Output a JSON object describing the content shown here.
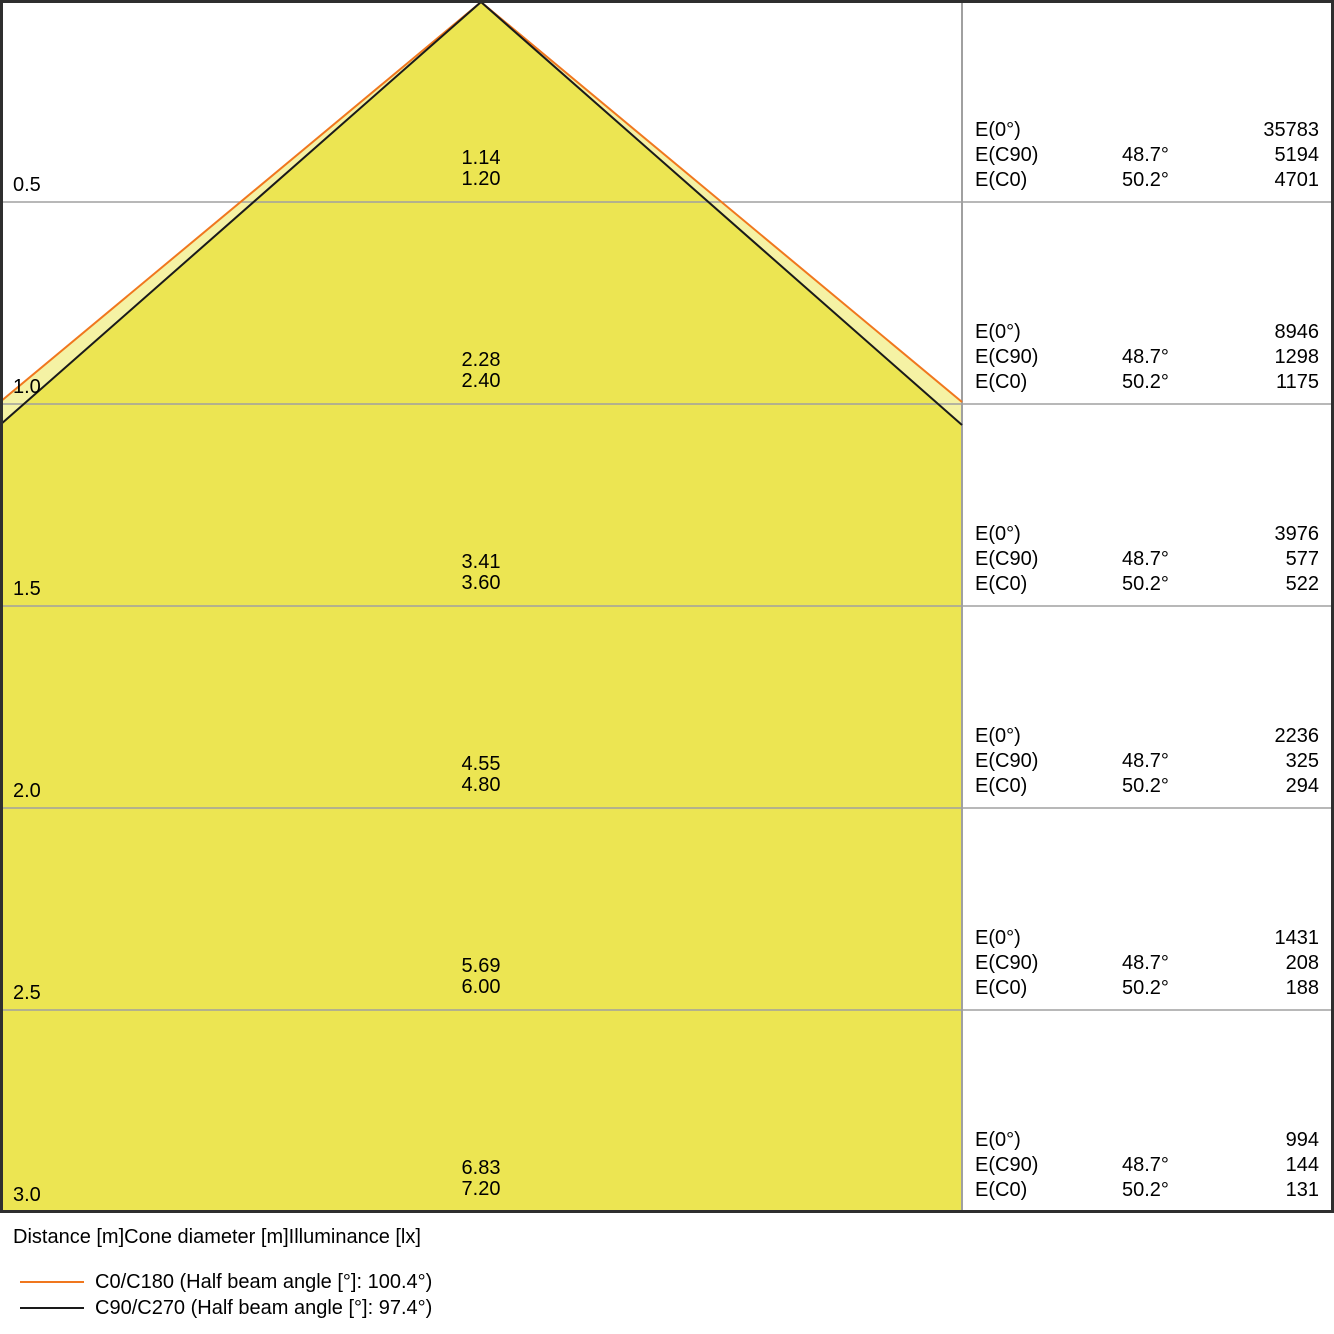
{
  "colors": {
    "cone_fill_main": "#ECE552",
    "cone_fill_light": "#F5F2A4",
    "line_c0_c180": "#F0771E",
    "line_c90_c270": "#1A1A1A",
    "grid_line": "#A0A0A0",
    "border": "#2F2F2F"
  },
  "table_labels": {
    "e0": "E(0°)",
    "ec90": "E(C90)",
    "ec0": "E(C0)"
  },
  "rows": [
    {
      "distance": "0.5",
      "cone_c90": "1.14",
      "cone_c0": "1.20",
      "e0": "35783",
      "ec90_angle": "48.7°",
      "ec90": "5194",
      "ec0_angle": "50.2°",
      "ec0": "4701"
    },
    {
      "distance": "1.0",
      "cone_c90": "2.28",
      "cone_c0": "2.40",
      "e0": "8946",
      "ec90_angle": "48.7°",
      "ec90": "1298",
      "ec0_angle": "50.2°",
      "ec0": "1175"
    },
    {
      "distance": "1.5",
      "cone_c90": "3.41",
      "cone_c0": "3.60",
      "e0": "3976",
      "ec90_angle": "48.7°",
      "ec90": "577",
      "ec0_angle": "50.2°",
      "ec0": "522"
    },
    {
      "distance": "2.0",
      "cone_c90": "4.55",
      "cone_c0": "4.80",
      "e0": "2236",
      "ec90_angle": "48.7°",
      "ec90": "325",
      "ec0_angle": "50.2°",
      "ec0": "294"
    },
    {
      "distance": "2.5",
      "cone_c90": "5.69",
      "cone_c0": "6.00",
      "e0": "1431",
      "ec90_angle": "48.7°",
      "ec90": "208",
      "ec0_angle": "50.2°",
      "ec0": "188"
    },
    {
      "distance": "3.0",
      "cone_c90": "6.83",
      "cone_c0": "7.20",
      "e0": "994",
      "ec90_angle": "48.7°",
      "ec90": "144",
      "ec0_angle": "50.2°",
      "ec0": "131"
    }
  ],
  "legend": {
    "header": "Distance [m]Cone diameter [m]Illuminance [lx]",
    "items": [
      {
        "label": "C0/C180 (Half beam angle [°]: 100.4°)",
        "color": "#F0771E"
      },
      {
        "label": "C90/C270 (Half beam angle [°]: 97.4°)",
        "color": "#1A1A1A"
      }
    ]
  },
  "chart_data": {
    "type": "table",
    "title": "Luminous intensity cone diagram: distance vs cone diameter and illuminance",
    "columns": [
      "Distance [m]",
      "Cone diameter C90/C270 [m]",
      "Cone diameter C0/C180 [m]",
      "E(0°) [lx]",
      "E(C90) half angle [°]",
      "E(C90) [lx]",
      "E(C0) half angle [°]",
      "E(C0) [lx]"
    ],
    "rows": [
      [
        0.5,
        1.14,
        1.2,
        35783,
        48.7,
        5194,
        50.2,
        4701
      ],
      [
        1.0,
        2.28,
        2.4,
        8946,
        48.7,
        1298,
        50.2,
        1175
      ],
      [
        1.5,
        3.41,
        3.6,
        3976,
        48.7,
        577,
        50.2,
        522
      ],
      [
        2.0,
        4.55,
        4.8,
        2236,
        48.7,
        325,
        50.2,
        294
      ],
      [
        2.5,
        5.69,
        6.0,
        1431,
        48.7,
        208,
        50.2,
        188
      ],
      [
        3.0,
        6.83,
        7.2,
        994,
        48.7,
        144,
        50.2,
        131
      ]
    ],
    "series": [
      {
        "name": "C0/C180 (Half beam angle [°]: 100.4°)",
        "half_beam_angle_deg": 100.4,
        "color": "#F0771E"
      },
      {
        "name": "C90/C270 (Half beam angle [°]: 97.4°)",
        "half_beam_angle_deg": 97.4,
        "color": "#1A1A1A"
      }
    ],
    "xlabel": "Distance [m]",
    "ylabel": "Cone diameter [m] / Illuminance [lx]",
    "axis_range_distance_m": [
      0,
      3.0
    ],
    "grid": true,
    "legend_position": "bottom-left"
  }
}
